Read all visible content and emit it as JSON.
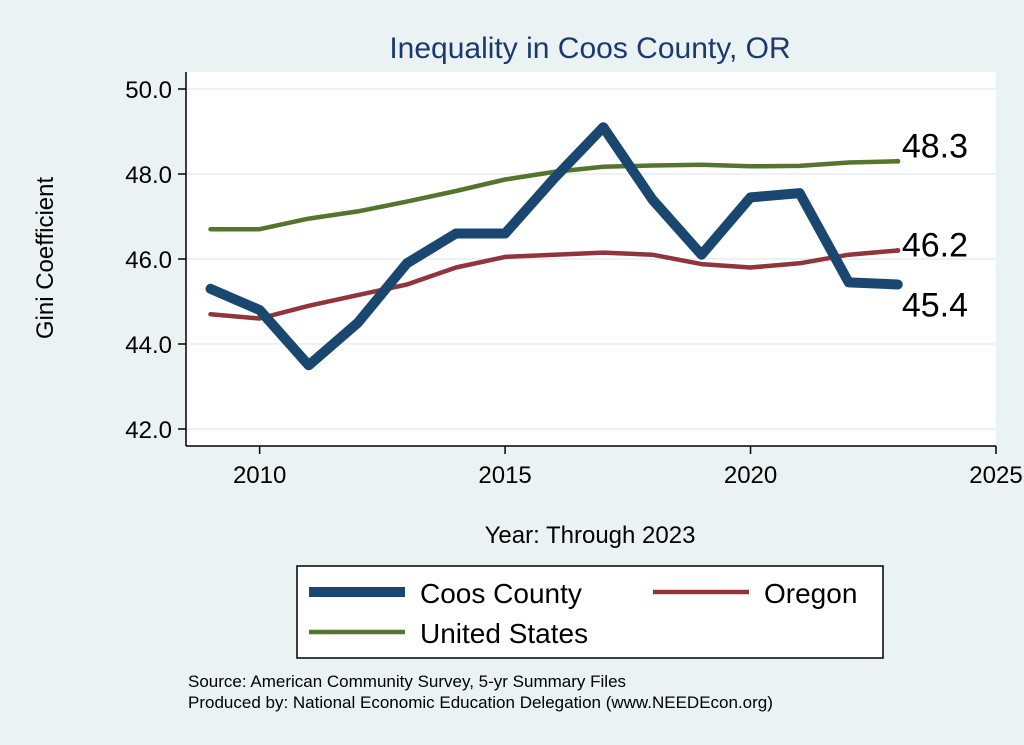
{
  "chart_data": {
    "type": "line",
    "title": "Inequality in Coos County, OR",
    "xlabel": "Year: Through 2023",
    "ylabel": "Gini Coefficient",
    "xlim": [
      2008.5,
      2025
    ],
    "ylim": [
      41.6,
      50.4
    ],
    "xticks": [
      2010,
      2015,
      2020,
      2025
    ],
    "yticks": [
      42,
      44,
      46,
      48,
      50
    ],
    "ytick_labels": [
      "42.0",
      "44.0",
      "46.0",
      "48.0",
      "50.0"
    ],
    "grid": true,
    "legend_position": "bottom",
    "series": [
      {
        "name": "Coos County",
        "color": "#1a476f",
        "x": [
          2009,
          2010,
          2011,
          2012,
          2013,
          2014,
          2015,
          2016,
          2017,
          2018,
          2019,
          2020,
          2021,
          2022,
          2023
        ],
        "values": [
          45.3,
          44.8,
          43.5,
          44.5,
          45.9,
          46.6,
          46.6,
          47.9,
          49.1,
          47.4,
          46.1,
          47.45,
          47.55,
          45.45,
          45.4
        ],
        "end_label": "45.4"
      },
      {
        "name": "Oregon",
        "color": "#90353b",
        "x": [
          2009,
          2010,
          2011,
          2012,
          2013,
          2014,
          2015,
          2016,
          2017,
          2018,
          2019,
          2020,
          2021,
          2022,
          2023
        ],
        "values": [
          44.7,
          44.6,
          44.9,
          45.15,
          45.4,
          45.8,
          46.05,
          46.1,
          46.15,
          46.1,
          45.88,
          45.8,
          45.9,
          46.1,
          46.2
        ],
        "end_label": "46.2"
      },
      {
        "name": "United States",
        "color": "#55752f",
        "x": [
          2009,
          2010,
          2011,
          2012,
          2013,
          2014,
          2015,
          2016,
          2017,
          2018,
          2019,
          2020,
          2021,
          2022,
          2023
        ],
        "values": [
          46.7,
          46.7,
          46.95,
          47.12,
          47.35,
          47.6,
          47.87,
          48.05,
          48.17,
          48.2,
          48.22,
          48.18,
          48.19,
          48.27,
          48.3
        ],
        "end_label": "48.3"
      }
    ]
  },
  "notes": {
    "source": "Source: American Community Survey, 5-yr Summary Files",
    "produced": "Produced by: National Economic Education Delegation (www.NEEDEcon.org)"
  }
}
